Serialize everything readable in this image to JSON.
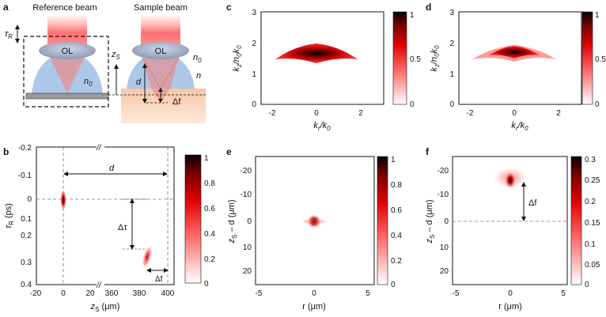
{
  "panels": {
    "a": {
      "letter": "a",
      "reference_label": "Reference beam",
      "sample_label": "Sample beam",
      "ol": "OL",
      "tau": "τ",
      "tau_sub": "R",
      "z": "z",
      "z_sub": "S",
      "n0": "n",
      "n0_sub": "0",
      "n": "n",
      "d": "d",
      "delta_f": "Δf"
    },
    "b": {
      "letter": "b",
      "ylabel_main": "τ",
      "ylabel_sub": "R",
      "ylabel_unit": " (ps)",
      "xlabel_main": "z",
      "xlabel_sub": "S",
      "xlabel_unit": " (μm)",
      "yticks": [
        "-0.2",
        "-0.1",
        "0",
        "0.1",
        "0.2",
        "0.3",
        "0.4"
      ],
      "xticks_left": [
        "-20",
        "0",
        "20"
      ],
      "xticks_right": [
        "360",
        "380",
        "400"
      ],
      "d": "d",
      "delta_tau": "Δτ",
      "delta_f": "Δf",
      "colorbar_ticks": [
        "1",
        "0.8",
        "0.6",
        "0.4",
        "0.2",
        "0"
      ]
    },
    "c": {
      "letter": "c",
      "ylabel": "kz/n0k0",
      "xlabel": "kr/k0",
      "yticks": [
        "3",
        "2",
        "1",
        "0"
      ],
      "xticks": [
        "-2",
        "0",
        "2"
      ],
      "colorbar_ticks": [
        "1",
        "0.5",
        "0"
      ]
    },
    "d": {
      "letter": "d",
      "ylabel": "kz/n0k0",
      "xlabel": "kr/k0",
      "yticks": [
        "3",
        "2",
        "1",
        "0"
      ],
      "xticks": [
        "-2",
        "0",
        "2"
      ],
      "colorbar_ticks": [
        "1",
        "0.5",
        "0"
      ]
    },
    "e": {
      "letter": "e",
      "ylabel_main": "z",
      "ylabel_sub": "S",
      "ylabel_rest": " – d (μm)",
      "xlabel": "r (μm)",
      "yticks": [
        "-20",
        "-10",
        "0",
        "10",
        "20"
      ],
      "xticks": [
        "-5",
        "0",
        "5"
      ],
      "colorbar_ticks": [
        "1",
        "0.8",
        "0.6",
        "0.4",
        "0.2",
        "0"
      ]
    },
    "f": {
      "letter": "f",
      "ylabel_main": "z",
      "ylabel_sub": "S",
      "ylabel_rest": " – d (μm)",
      "xlabel": "r (μm)",
      "yticks": [
        "-20",
        "-10",
        "0",
        "10",
        "20"
      ],
      "xticks": [
        "-5",
        "0",
        "5"
      ],
      "delta_f": "Δf",
      "colorbar_ticks": [
        "0.3",
        "0.25",
        "0.2",
        "0.15",
        "0.1",
        "0.05",
        "0"
      ]
    }
  }
}
